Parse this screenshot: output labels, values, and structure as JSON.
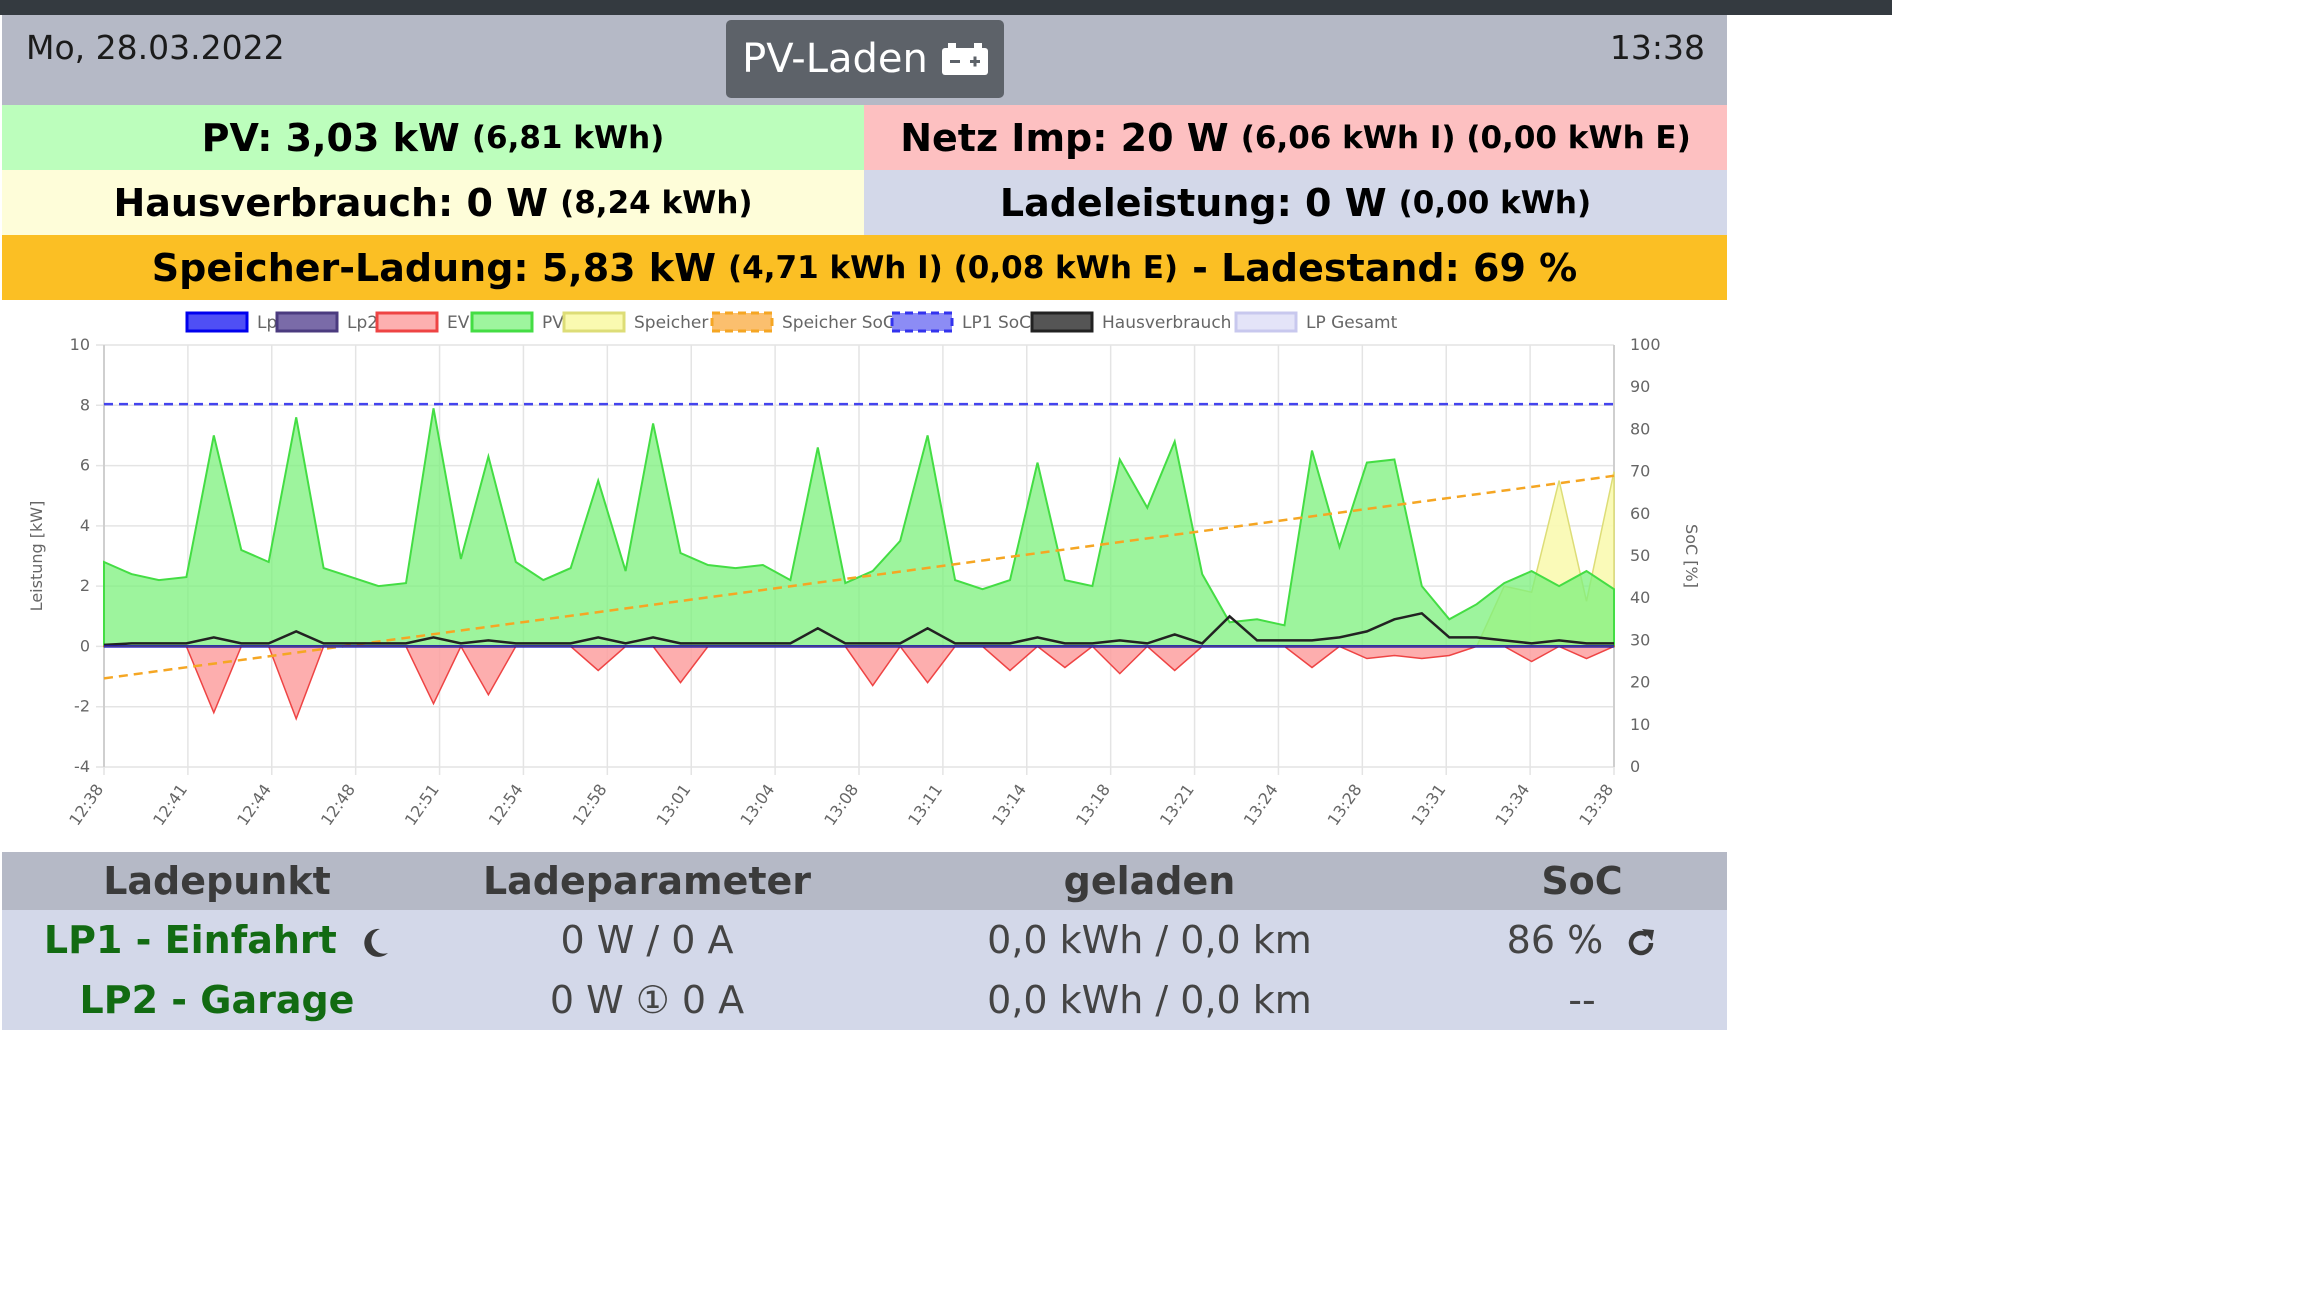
{
  "header": {
    "date": "Mo, 28.03.2022",
    "time": "13:38",
    "mode_label": "PV-Laden",
    "mode_icon": "car-battery-icon"
  },
  "stats": {
    "pv_main": "PV: 3,03 kW",
    "pv_sub": "(6,81 kWh)",
    "netz_main": "Netz Imp: 20 W",
    "netz_sub": "(6,06 kWh I) (0,00 kWh E)",
    "haus_main": "Hausverbrauch: 0 W",
    "haus_sub": "(8,24 kWh)",
    "lade_main": "Ladeleistung: 0 W",
    "lade_sub": "(0,00 kWh)",
    "speicher_main": "Speicher-Ladung: 5,83 kW",
    "speicher_sub": "(4,71 kWh I) (0,08 kWh E)",
    "speicher_soc": "- Ladestand: 69 %"
  },
  "colors": {
    "pv_bg": "#bcfebc",
    "netz_bg": "#fdc0c1",
    "haus_bg": "#fefdd9",
    "lade_bg": "#d3d8e9",
    "speicher_bg": "#fbbf24",
    "header_bg": "#b5b9c6",
    "lp_name": "#126b12"
  },
  "chart_data": {
    "type": "area",
    "ylabel": "Leistung [kW]",
    "y2label": "SoC [%]",
    "ylim": [
      -4,
      10
    ],
    "y2lim": [
      0,
      100
    ],
    "yticks": [
      "10",
      "8",
      "6",
      "4",
      "2",
      "0",
      "-2",
      "-4"
    ],
    "y2ticks": [
      "100",
      "90",
      "80",
      "70",
      "60",
      "50",
      "40",
      "30",
      "20",
      "10",
      "0"
    ],
    "xticks": [
      "12:38",
      "12:41",
      "12:44",
      "12:48",
      "12:51",
      "12:54",
      "12:58",
      "13:01",
      "13:04",
      "13:08",
      "13:11",
      "13:14",
      "13:18",
      "13:21",
      "13:24",
      "13:28",
      "13:31",
      "13:34",
      "13:38"
    ],
    "grid": true,
    "legend_position": "top",
    "legend": [
      {
        "name": "Lp1",
        "fill": "#4f4ff5",
        "stroke": "#0000ee",
        "dashed": false
      },
      {
        "name": "Lp2",
        "fill": "#7a6ba8",
        "stroke": "#4b3b7f",
        "dashed": false
      },
      {
        "name": "EVU",
        "fill": "#fdb0b0",
        "stroke": "#ee4444",
        "dashed": false
      },
      {
        "name": "PV",
        "fill": "#9ef59e",
        "stroke": "#44dd44",
        "dashed": false
      },
      {
        "name": "Speicher",
        "fill": "#fafab0",
        "stroke": "#dddd77",
        "dashed": false
      },
      {
        "name": "Speicher SoC",
        "fill": "#fbbf6e",
        "stroke": "#f5a623",
        "dashed": true
      },
      {
        "name": "LP1 SoC",
        "fill": "#8c8cf5",
        "stroke": "#3333ee",
        "dashed": true
      },
      {
        "name": "Hausverbrauch",
        "fill": "#555555",
        "stroke": "#222222",
        "dashed": false
      },
      {
        "name": "LP Gesamt",
        "fill": "#e4e4f8",
        "stroke": "#c8c8ee",
        "dashed": false
      }
    ],
    "series": [
      {
        "name": "PV",
        "axis": "kW",
        "values": [
          2.8,
          2.4,
          2.2,
          2.3,
          7.0,
          3.2,
          2.8,
          7.6,
          2.6,
          2.3,
          2.0,
          2.1,
          7.9,
          2.9,
          6.3,
          2.8,
          2.2,
          2.6,
          5.5,
          2.5,
          7.4,
          3.1,
          2.7,
          2.6,
          2.7,
          2.2,
          6.6,
          2.1,
          2.5,
          3.5,
          7.0,
          2.2,
          1.9,
          2.2,
          6.1,
          2.2,
          2.0,
          6.2,
          4.6,
          6.8,
          2.4,
          0.8,
          0.9,
          0.7,
          6.5,
          3.3,
          6.1,
          6.2,
          2.0,
          0.9,
          1.4,
          2.1,
          2.5,
          2.0,
          2.5,
          1.9
        ]
      },
      {
        "name": "Speicher",
        "axis": "kW",
        "values": [
          0,
          0,
          0,
          0,
          0,
          0,
          0,
          0,
          0,
          0,
          0,
          0,
          0,
          0,
          0,
          0,
          0,
          0,
          0,
          0,
          0,
          0,
          0,
          0,
          0,
          0,
          0,
          0,
          0,
          0,
          0,
          0,
          0,
          0,
          0,
          0,
          0,
          0,
          0,
          0,
          0,
          0,
          0,
          0,
          0,
          0,
          0,
          0,
          0,
          0,
          0,
          2.0,
          1.8,
          5.5,
          1.5,
          5.8
        ]
      },
      {
        "name": "EVU",
        "axis": "kW",
        "values": [
          0,
          0,
          0,
          0,
          -2.2,
          0,
          0,
          -2.4,
          0,
          0,
          0,
          0,
          -1.9,
          0,
          -1.6,
          0,
          0,
          0,
          -0.8,
          0,
          0,
          -1.2,
          0,
          0,
          0,
          0,
          0,
          0,
          -1.3,
          0,
          -1.2,
          0,
          0,
          -0.8,
          0,
          -0.7,
          0,
          -0.9,
          0,
          -0.8,
          0,
          0,
          0,
          0,
          -0.7,
          0,
          -0.4,
          -0.3,
          -0.4,
          -0.3,
          0,
          0,
          -0.5,
          0,
          -0.4,
          0
        ]
      },
      {
        "name": "Hausverbrauch",
        "axis": "kW",
        "values": [
          0.05,
          0.1,
          0.1,
          0.1,
          0.3,
          0.1,
          0.1,
          0.5,
          0.1,
          0.1,
          0.1,
          0.1,
          0.3,
          0.1,
          0.2,
          0.1,
          0.1,
          0.1,
          0.3,
          0.1,
          0.3,
          0.1,
          0.1,
          0.1,
          0.1,
          0.1,
          0.6,
          0.1,
          0.1,
          0.1,
          0.6,
          0.1,
          0.1,
          0.1,
          0.3,
          0.1,
          0.1,
          0.2,
          0.1,
          0.4,
          0.1,
          1.0,
          0.2,
          0.2,
          0.2,
          0.3,
          0.5,
          0.9,
          1.1,
          0.3,
          0.3,
          0.2,
          0.1,
          0.2,
          0.1,
          0.1
        ]
      },
      {
        "name": "LP1 SoC",
        "axis": "%",
        "values": [
          86,
          86
        ]
      },
      {
        "name": "Speicher SoC",
        "axis": "%",
        "values": [
          21,
          23,
          25,
          27,
          29,
          31,
          33,
          35,
          37,
          39,
          41,
          43,
          45,
          47,
          49,
          51,
          53,
          55,
          57,
          59,
          61,
          63,
          65,
          67,
          69
        ]
      },
      {
        "name": "Lp1",
        "axis": "kW",
        "values": [
          0,
          0
        ]
      },
      {
        "name": "Lp2",
        "axis": "kW",
        "values": [
          0,
          0
        ]
      }
    ]
  },
  "lp_table": {
    "headers": [
      "Ladepunkt",
      "Ladeparameter",
      "geladen",
      "SoC"
    ],
    "rows": [
      {
        "name": "LP1 - Einfahrt",
        "icon": "moon-icon",
        "param": "0 W / 0 A",
        "charged": "0,0 kWh / 0,0 km",
        "soc": "86 %",
        "soc_icon": "refresh-icon"
      },
      {
        "name": "LP2 - Garage",
        "param": "0 W ① 0 A",
        "charged": "0,0 kWh / 0,0 km",
        "soc": "--"
      }
    ]
  }
}
